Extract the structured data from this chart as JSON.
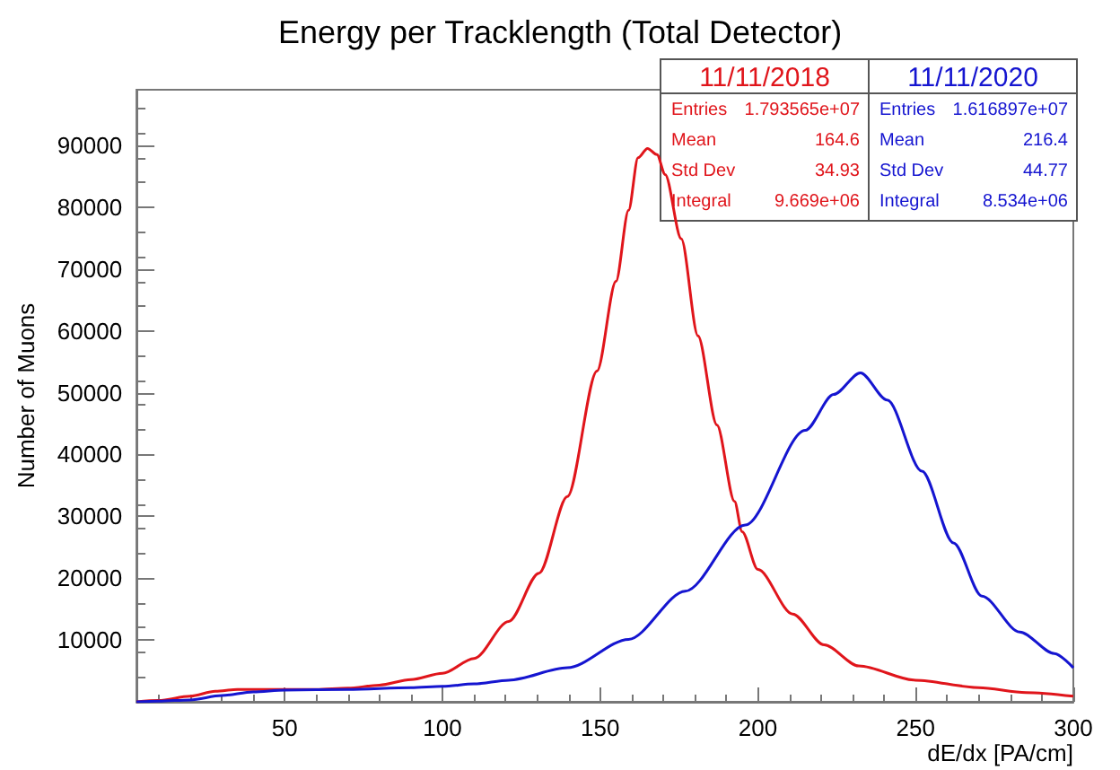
{
  "chart_data": {
    "type": "line",
    "title": "Energy per Tracklength (Total Detector)",
    "xlabel": "dE/dx [PA/cm]",
    "ylabel": "Number of Muons",
    "xlim": [
      3,
      300
    ],
    "xticks": [
      50,
      100,
      150,
      200,
      250,
      300
    ],
    "ylim": [
      0,
      99000
    ],
    "yticks": [
      10000,
      20000,
      30000,
      40000,
      50000,
      60000,
      70000,
      80000,
      90000
    ],
    "grid": false,
    "legend": "top right",
    "marker": "none",
    "line_style": "solid",
    "annotations": [
      "Entries",
      "1.793565e+07",
      "Mean",
      "164.6",
      "Std Dev",
      "34.93",
      "Integral",
      "9.669e+06",
      "Entries",
      "1.616897e+07",
      "Mean",
      "216.4",
      "Std Dev",
      "44.77",
      "Integral",
      "8.534e+06"
    ],
    "series": [
      {
        "name": "11/11/2018",
        "color": "#e0151b",
        "x": [
          3,
          10,
          20,
          28,
          35,
          45,
          60,
          70,
          80,
          90,
          100,
          110,
          121,
          130.6,
          139.6,
          149,
          155,
          159,
          162,
          165,
          168,
          170.6,
          175.7,
          181,
          187,
          192.6,
          195,
          200,
          211,
          221,
          232,
          250,
          270,
          285,
          300
        ],
        "values": [
          0,
          200,
          900,
          1700,
          2000,
          2000,
          2000,
          2200,
          2700,
          3600,
          4600,
          7000,
          13000,
          20800,
          33200,
          53500,
          68000,
          79500,
          88000,
          89500,
          88500,
          85300,
          74900,
          59200,
          44800,
          32400,
          27500,
          21400,
          14200,
          9200,
          5800,
          3500,
          2300,
          1500,
          900
        ]
      },
      {
        "name": "11/11/2020",
        "color": "#1515d0",
        "x": [
          3,
          10,
          20,
          30,
          40,
          50,
          70,
          90,
          100,
          110,
          121,
          139.6,
          159,
          177,
          196,
          215,
          224,
          232.5,
          241,
          252,
          262,
          271,
          283,
          294,
          300
        ],
        "values": [
          0,
          100,
          300,
          1000,
          1600,
          1900,
          2000,
          2300,
          2500,
          2900,
          3500,
          5500,
          10100,
          17900,
          28600,
          43900,
          49700,
          53200,
          48800,
          37300,
          25700,
          17100,
          11300,
          7800,
          5500
        ]
      }
    ]
  }
}
